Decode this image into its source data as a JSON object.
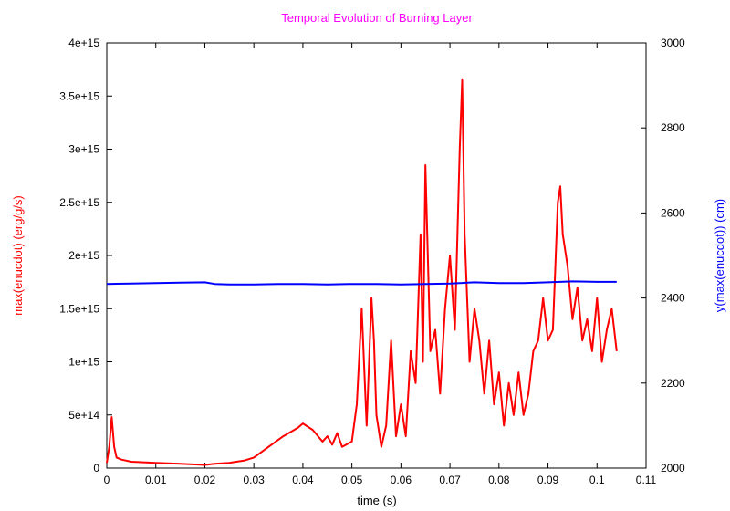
{
  "chart_data": {
    "type": "line",
    "title": "Temporal Evolution of Burning Layer",
    "xlabel": "time (s)",
    "ylabel": "max(enucdot) (erg/g/s)",
    "y2label": "y(max(enucdot)) (cm)",
    "xlim": [
      0,
      0.11
    ],
    "ylim": [
      0,
      4000000000000000.0
    ],
    "y2lim": [
      2000,
      3000
    ],
    "x_ticks": [
      0,
      0.01,
      0.02,
      0.03,
      0.04,
      0.05,
      0.06,
      0.07,
      0.08,
      0.09,
      0.1,
      0.11
    ],
    "x_tick_labels": [
      "0",
      "0.01",
      "0.02",
      "0.03",
      "0.04",
      "0.05",
      "0.06",
      "0.07",
      "0.08",
      "0.09",
      "0.1",
      "0.11"
    ],
    "y_ticks": [
      0,
      500000000000000.0,
      1000000000000000.0,
      1500000000000000.0,
      2000000000000000.0,
      2500000000000000.0,
      3000000000000000.0,
      3500000000000000.0,
      4000000000000000.0
    ],
    "y_tick_labels": [
      "0",
      "5e+14",
      "1e+15",
      "1.5e+15",
      "2e+15",
      "2.5e+15",
      "3e+15",
      "3.5e+15",
      "4e+15"
    ],
    "y2_ticks": [
      2000,
      2200,
      2400,
      2600,
      2800,
      3000
    ],
    "y2_tick_labels": [
      "2000",
      "2200",
      "2400",
      "2600",
      "2800",
      "3000"
    ],
    "grid": false,
    "series": [
      {
        "color": "#ff0000",
        "axis": "left",
        "x": [
          0,
          0.0005,
          0.001,
          0.0015,
          0.002,
          0.003,
          0.005,
          0.01,
          0.015,
          0.02,
          0.022,
          0.025,
          0.028,
          0.03,
          0.033,
          0.036,
          0.039,
          0.04,
          0.042,
          0.044,
          0.045,
          0.046,
          0.047,
          0.048,
          0.05,
          0.051,
          0.052,
          0.053,
          0.054,
          0.0545,
          0.055,
          0.056,
          0.057,
          0.058,
          0.059,
          0.06,
          0.061,
          0.062,
          0.063,
          0.064,
          0.0645,
          0.065,
          0.066,
          0.067,
          0.068,
          0.069,
          0.07,
          0.071,
          0.072,
          0.0725,
          0.073,
          0.074,
          0.075,
          0.076,
          0.077,
          0.078,
          0.079,
          0.08,
          0.081,
          0.082,
          0.083,
          0.084,
          0.085,
          0.086,
          0.087,
          0.088,
          0.089,
          0.09,
          0.091,
          0.092,
          0.0925,
          0.093,
          0.094,
          0.095,
          0.096,
          0.097,
          0.098,
          0.099,
          0.1,
          0.101,
          0.102,
          0.103,
          0.104
        ],
        "y": [
          50000000000000.0,
          200000000000000.0,
          480000000000000.0,
          200000000000000.0,
          100000000000000.0,
          80000000000000.0,
          60000000000000.0,
          50000000000000.0,
          40000000000000.0,
          30000000000000.0,
          40000000000000.0,
          50000000000000.0,
          70000000000000.0,
          100000000000000.0,
          200000000000000.0,
          300000000000000.0,
          380000000000000.0,
          420000000000000.0,
          360000000000000.0,
          250000000000000.0,
          300000000000000.0,
          220000000000000.0,
          330000000000000.0,
          200000000000000.0,
          250000000000000.0,
          600000000000000.0,
          1500000000000000.0,
          400000000000000.0,
          1600000000000000.0,
          1200000000000000.0,
          500000000000000.0,
          200000000000000.0,
          400000000000000.0,
          1200000000000000.0,
          300000000000000.0,
          600000000000000.0,
          300000000000000.0,
          1100000000000000.0,
          800000000000000.0,
          2200000000000000.0,
          1000000000000000.0,
          2850000000000000.0,
          1100000000000000.0,
          1300000000000000.0,
          700000000000000.0,
          1500000000000000.0,
          2000000000000000.0,
          1300000000000000.0,
          3000000000000000.0,
          3650000000000000.0,
          2200000000000000.0,
          1000000000000000.0,
          1500000000000000.0,
          1200000000000000.0,
          700000000000000.0,
          1200000000000000.0,
          600000000000000.0,
          900000000000000.0,
          400000000000000.0,
          800000000000000.0,
          500000000000000.0,
          900000000000000.0,
          500000000000000.0,
          700000000000000.0,
          1100000000000000.0,
          1200000000000000.0,
          1600000000000000.0,
          1200000000000000.0,
          1300000000000000.0,
          2500000000000000.0,
          2650000000000000.0,
          2200000000000000.0,
          1900000000000000.0,
          1400000000000000.0,
          1700000000000000.0,
          1200000000000000.0,
          1400000000000000.0,
          1100000000000000.0,
          1600000000000000.0,
          1000000000000000.0,
          1300000000000000.0,
          1500000000000000.0,
          1100000000000000.0
        ]
      },
      {
        "color": "#0000ff",
        "axis": "right",
        "x": [
          0,
          0.005,
          0.01,
          0.015,
          0.02,
          0.022,
          0.025,
          0.03,
          0.035,
          0.04,
          0.045,
          0.05,
          0.055,
          0.06,
          0.065,
          0.07,
          0.075,
          0.08,
          0.085,
          0.09,
          0.095,
          0.1,
          0.104
        ],
        "y": [
          2433,
          2434,
          2435,
          2436,
          2437,
          2433,
          2432,
          2432,
          2433,
          2433,
          2432,
          2433,
          2433,
          2432,
          2433,
          2434,
          2437,
          2435,
          2435,
          2437,
          2439,
          2438,
          2438
        ]
      }
    ]
  },
  "colors": {
    "title": "#ff00ff",
    "left_axis_label": "#ff0000",
    "right_axis_label": "#0000ff",
    "axes": "#000000"
  }
}
